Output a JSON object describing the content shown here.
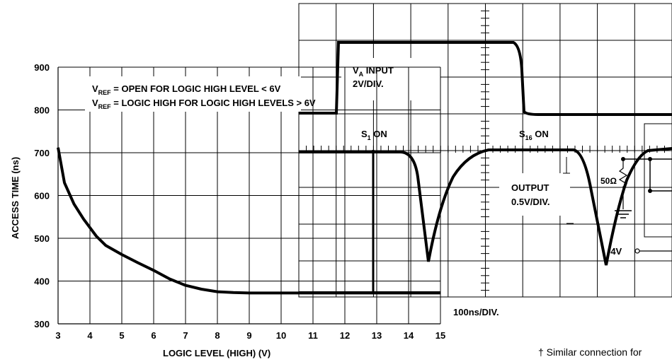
{
  "chart_data": [
    {
      "type": "line",
      "title": "",
      "xlabel": "LOGIC LEVEL (HIGH) (V)",
      "ylabel": "ACCESS TIME (ns)",
      "xlim": [
        3,
        15
      ],
      "ylim": [
        300,
        900
      ],
      "x_ticks": [
        "3",
        "4",
        "5",
        "6",
        "7",
        "8",
        "9",
        "10",
        "11",
        "12",
        "13",
        "14",
        "15"
      ],
      "y_ticks": [
        "300",
        "400",
        "500",
        "600",
        "700",
        "800",
        "900"
      ],
      "grid": true,
      "legend_lines": [
        {
          "sym": "V",
          "sub": "REF",
          "text": " = OPEN FOR LOGIC HIGH LEVEL < 6V"
        },
        {
          "sym": "V",
          "sub": "REF",
          "text": " = LOGIC HIGH FOR LOGIC HIGH LEVELS > 6V"
        }
      ],
      "series": [
        {
          "x": [
            3.0,
            3.2,
            3.5,
            3.8,
            4.0,
            4.2,
            4.5,
            5.0,
            5.5,
            6.0,
            6.5,
            7.0,
            7.5,
            8.0,
            8.5,
            9.0,
            10.0,
            11.0,
            12.0,
            13.0,
            14.0,
            15.0
          ],
          "y": [
            712,
            630,
            580,
            545,
            525,
            505,
            483,
            462,
            443,
            425,
            405,
            390,
            381,
            375,
            373,
            372,
            372,
            372,
            372,
            372,
            372,
            372
          ]
        }
      ]
    },
    {
      "type": "line",
      "title": "",
      "time_scale": "100ns/DIV.",
      "channels": [
        {
          "label_sym": "V",
          "label_sub": "A",
          "label_text": " INPUT",
          "scale": "2V/DIV."
        },
        {
          "label": "OUTPUT",
          "scale": "0.5V/DIV."
        }
      ],
      "segment_labels": [
        {
          "sym": "S",
          "sub": "1",
          "text": " ON"
        },
        {
          "sym": "S",
          "sub": "16",
          "text": " ON"
        }
      ],
      "circuit": {
        "resistor": "50Ω",
        "supply": "-4V"
      }
    }
  ],
  "footnote": "† Similar connection for"
}
